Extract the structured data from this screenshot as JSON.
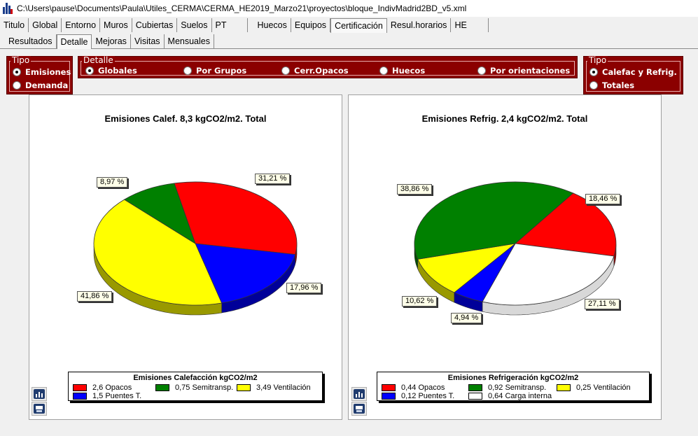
{
  "window": {
    "title": "C:\\Users\\pause\\Documents\\Paula\\Utiles_CERMA\\CERMA_HE2019_Marzo21\\proyectos\\bloque_IndivMadrid2BD_v5.xml"
  },
  "main_tabs": [
    {
      "label": "Titulo"
    },
    {
      "label": "Global"
    },
    {
      "label": "Entorno"
    },
    {
      "label": "Muros"
    },
    {
      "label": "Cubiertas"
    },
    {
      "label": "Suelos"
    },
    {
      "label": "PT"
    },
    {
      "label": "Huecos"
    },
    {
      "label": "Equipos"
    },
    {
      "label": "Certificación"
    },
    {
      "label": "Resul.horarios"
    },
    {
      "label": "HE"
    }
  ],
  "sub_tabs": [
    {
      "label": "Resultados"
    },
    {
      "label": "Detalle"
    },
    {
      "label": "Mejoras"
    },
    {
      "label": "Visitas"
    },
    {
      "label": "Mensuales"
    }
  ],
  "tipo_left": {
    "legend": "Tipo",
    "options": [
      {
        "label": "Emisiones",
        "selected": true
      },
      {
        "label": "Demanda",
        "selected": false
      }
    ]
  },
  "detalle": {
    "legend": "Detalle",
    "options": [
      {
        "label": "Globales",
        "selected": true
      },
      {
        "label": "Por Grupos",
        "selected": false
      },
      {
        "label": "Cerr.Opacos",
        "selected": false
      },
      {
        "label": "Huecos",
        "selected": false
      },
      {
        "label": "Por orientaciones",
        "selected": false
      }
    ]
  },
  "tipo_right": {
    "legend": "Tipo",
    "options": [
      {
        "label": "Calefac y Refrig.",
        "selected": true
      },
      {
        "label": "Totales",
        "selected": false
      }
    ]
  },
  "colors": {
    "red": "#ff0000",
    "green": "#008000",
    "yellow": "#ffff00",
    "blue": "#0000ff",
    "white": "#ffffff",
    "maroon": "#8b0000"
  },
  "chart_data": [
    {
      "type": "pie",
      "title": "Emisiones Calef. 8,3 kgCO2/m2. Total",
      "legend_title": "Emisiones Calefacción kgCO2/m2",
      "slices": [
        {
          "legend": "2,6 Opacos",
          "value": 2.6,
          "percent_label": "31,21 %",
          "color": "#ff0000"
        },
        {
          "legend": "1,5 Puentes T.",
          "value": 1.5,
          "percent_label": "17,96 %",
          "color": "#0000ff"
        },
        {
          "legend": "3,49 Ventilación",
          "value": 3.49,
          "percent_label": "41,86 %",
          "color": "#ffff00"
        },
        {
          "legend": "0,75 Semitransp.",
          "value": 0.75,
          "percent_label": "8,97 %",
          "color": "#008000"
        }
      ]
    },
    {
      "type": "pie",
      "title": "Emisiones Refrig. 2,4 kgCO2/m2. Total",
      "legend_title": "Emisiones Refrigeración kgCO2/m2",
      "slices": [
        {
          "legend": "0,44 Opacos",
          "value": 0.44,
          "percent_label": "18,46 %",
          "color": "#ff0000"
        },
        {
          "legend": "0,64 Carga interna",
          "value": 0.64,
          "percent_label": "27,11 %",
          "color": "#ffffff"
        },
        {
          "legend": "0,12 Puentes T.",
          "value": 0.12,
          "percent_label": "4,94 %",
          "color": "#0000ff"
        },
        {
          "legend": "0,25 Ventilación",
          "value": 0.25,
          "percent_label": "10,62 %",
          "color": "#ffff00"
        },
        {
          "legend": "0,92 Semitransp.",
          "value": 0.92,
          "percent_label": "38,86 %",
          "color": "#008000"
        }
      ]
    }
  ]
}
